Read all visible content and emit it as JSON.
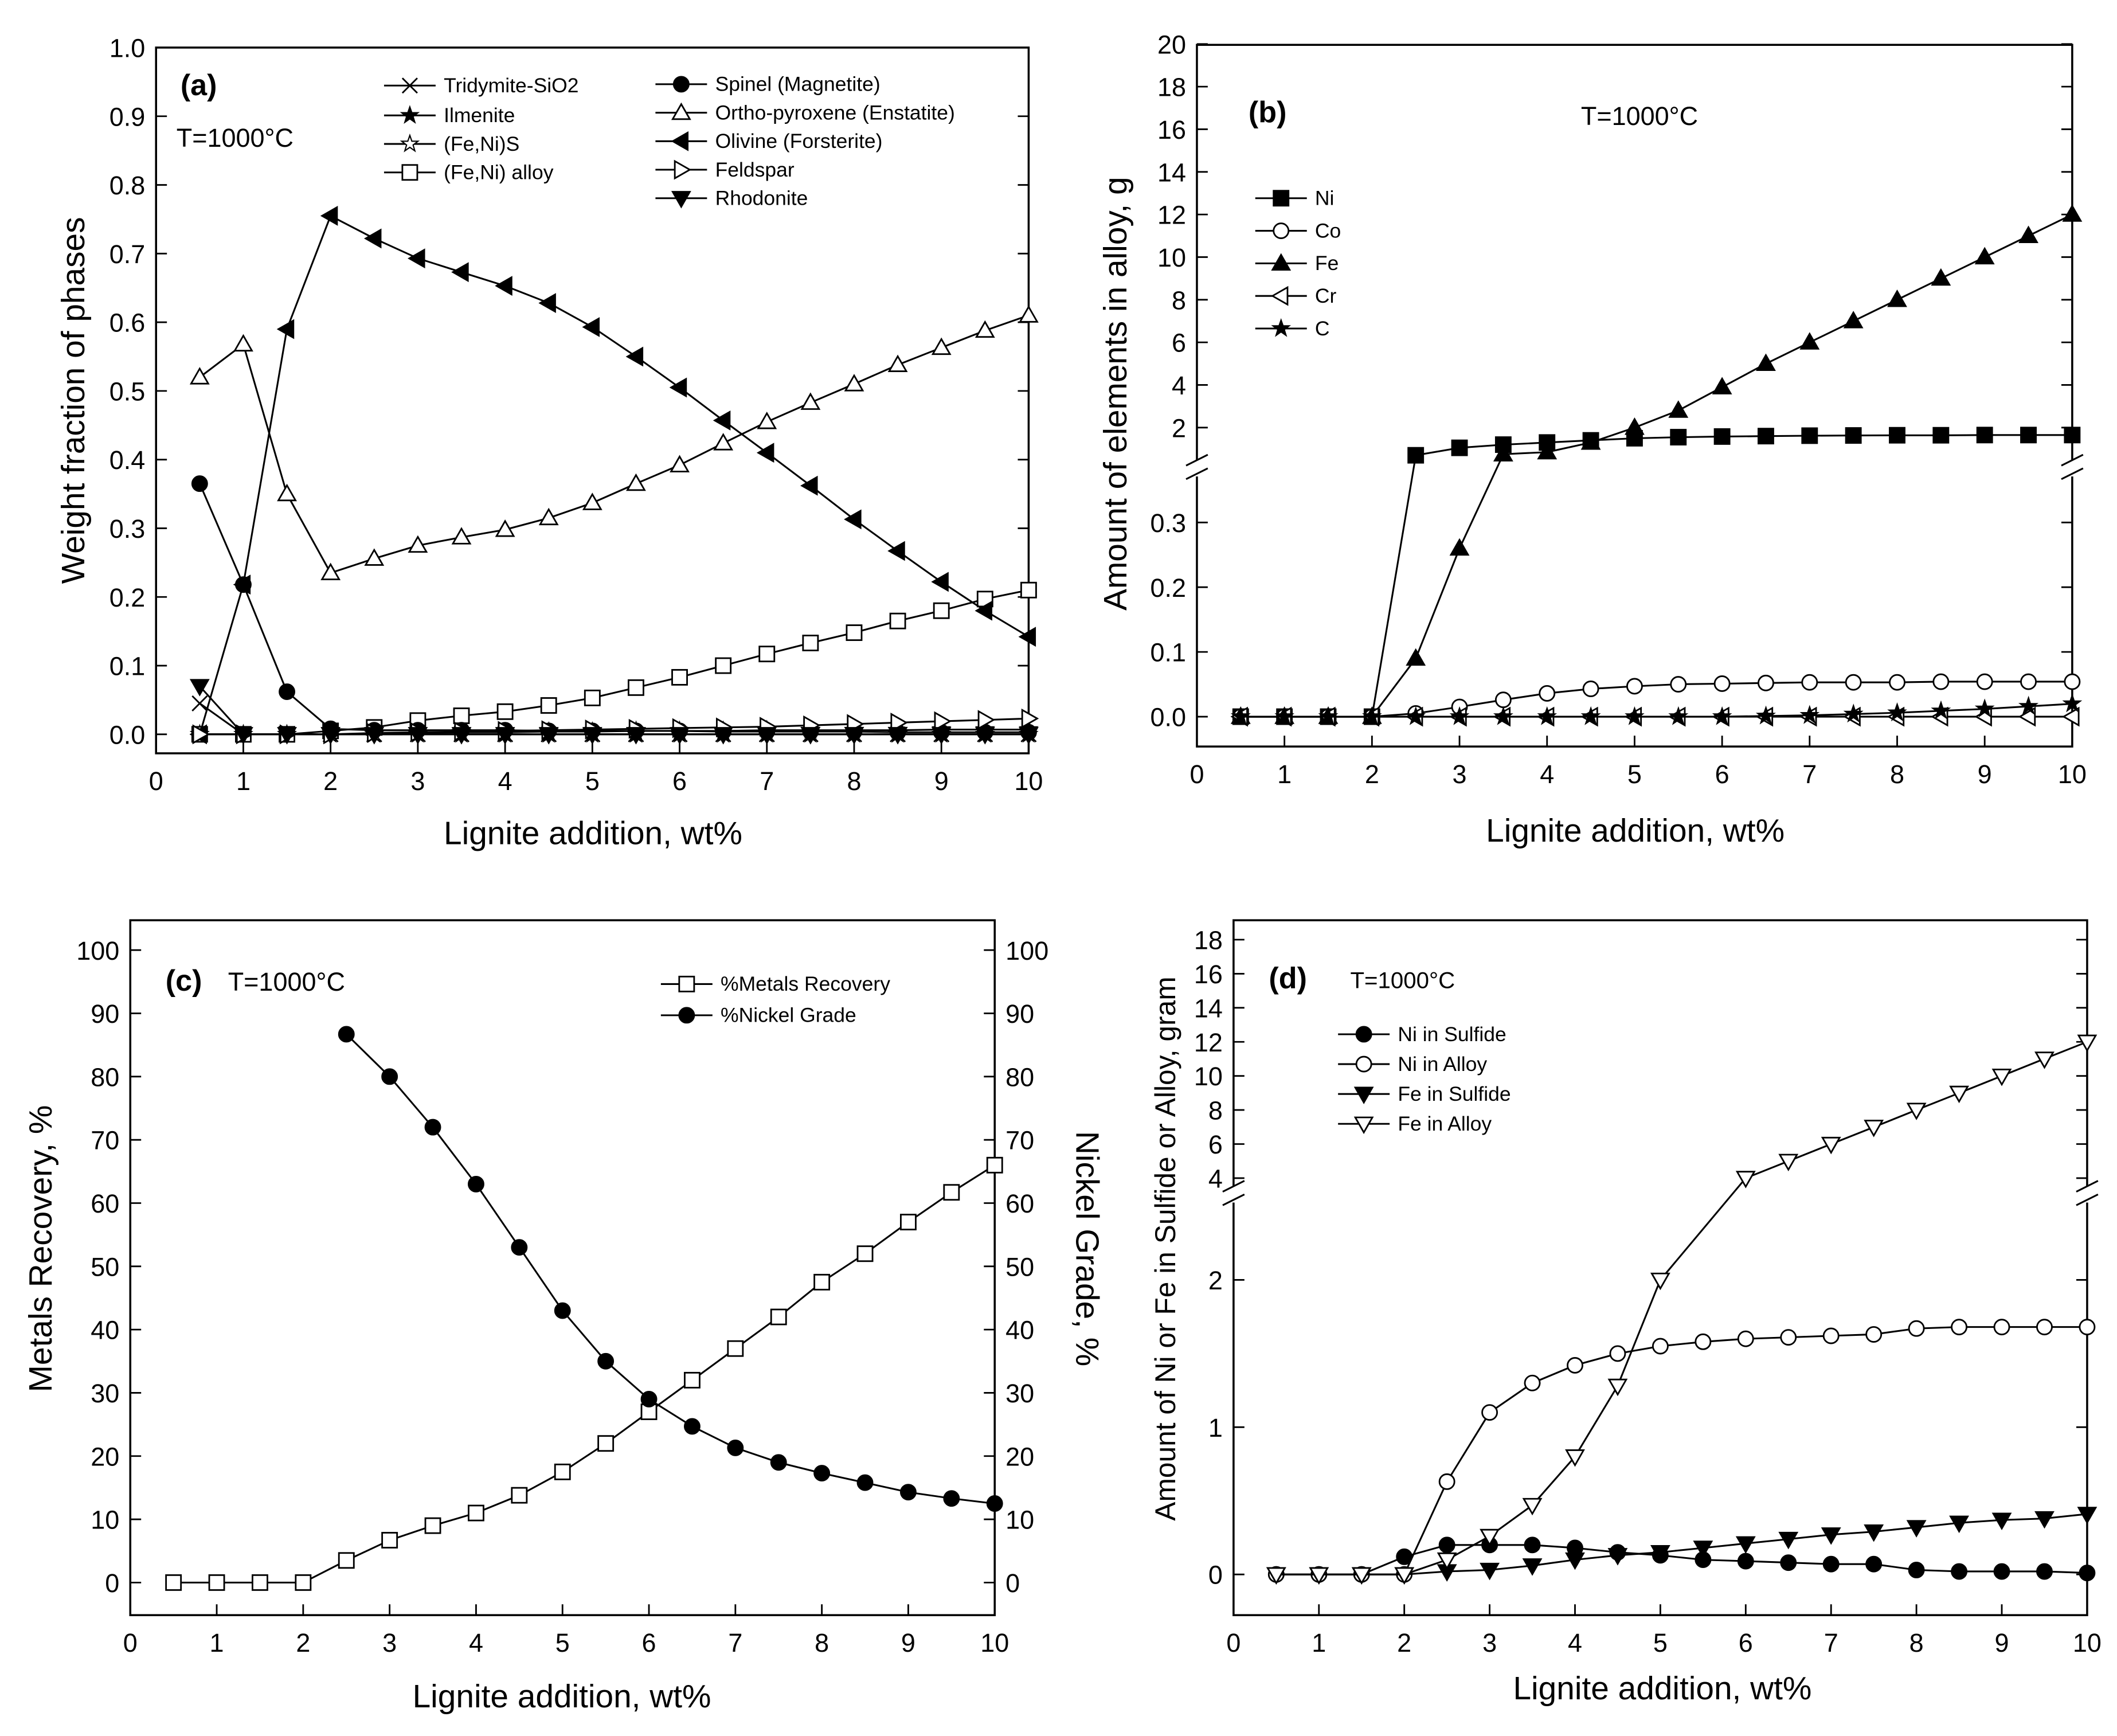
{
  "chart_data": [
    {
      "type": "line",
      "panel_label": "(a)",
      "annotation": "T=1000°C",
      "xlabel": "Lignite addition, wt%",
      "ylabel": "Weight fraction of phases",
      "xlim": [
        0,
        10
      ],
      "ylim": [
        0,
        1.0
      ],
      "xticks": [
        "0",
        "1",
        "2",
        "3",
        "4",
        "5",
        "6",
        "7",
        "8",
        "9",
        "10"
      ],
      "yticks": [
        "0.0",
        "0.1",
        "0.2",
        "0.3",
        "0.4",
        "0.5",
        "0.6",
        "0.7",
        "0.8",
        "0.9",
        "1.0"
      ],
      "x": [
        0.5,
        1,
        1.5,
        2,
        2.5,
        3,
        3.5,
        4,
        4.5,
        5,
        5.5,
        6,
        6.5,
        7,
        7.5,
        8,
        8.5,
        9,
        9.5,
        10
      ],
      "series": [
        {
          "name": "Tridymite-SiO2",
          "marker": "cross",
          "values": [
            0.045,
            0,
            0,
            0,
            0,
            0,
            0,
            0,
            0,
            0,
            0,
            0,
            0,
            0,
            0,
            0,
            0,
            0,
            0,
            0
          ]
        },
        {
          "name": "Ilmenite",
          "marker": "star-filled",
          "values": [
            0,
            0,
            0,
            0,
            0,
            0,
            0,
            0,
            0,
            0,
            0,
            0,
            0,
            0,
            0,
            0,
            0,
            0,
            0,
            0
          ]
        },
        {
          "name": "(Fe,Ni)S",
          "marker": "star-open",
          "values": [
            0,
            0,
            0,
            0,
            0.001,
            0.002,
            0.003,
            0.003,
            0.004,
            0.004,
            0.005,
            0.005,
            0.005,
            0.006,
            0.006,
            0.006,
            0.006,
            0.007,
            0.007,
            0.007
          ]
        },
        {
          "name": "(Fe,Ni) alloy",
          "marker": "square-open",
          "values": [
            0,
            0,
            0,
            0.005,
            0.01,
            0.02,
            0.027,
            0.033,
            0.042,
            0.053,
            0.068,
            0.083,
            0.1,
            0.117,
            0.133,
            0.148,
            0.165,
            0.18,
            0.197,
            0.21
          ]
        },
        {
          "name": "Spinel (Magnetite)",
          "marker": "circle-filled",
          "values": [
            0.365,
            0.218,
            0.062,
            0.008,
            0.006,
            0.006,
            0.006,
            0.006,
            0.005,
            0.005,
            0.005,
            0.005,
            0.004,
            0.004,
            0.004,
            0.004,
            0.003,
            0.003,
            0.003,
            0.003
          ]
        },
        {
          "name": "Ortho-pyroxene (Enstatite)",
          "marker": "triangle-up-open",
          "values": [
            0.52,
            0.568,
            0.35,
            0.235,
            0.256,
            0.275,
            0.287,
            0.298,
            0.315,
            0.337,
            0.365,
            0.392,
            0.424,
            0.455,
            0.483,
            0.51,
            0.538,
            0.563,
            0.588,
            0.61
          ]
        },
        {
          "name": "Olivine (Forsterite)",
          "marker": "triangle-left-filled",
          "values": [
            0.0,
            0.218,
            0.59,
            0.755,
            0.722,
            0.693,
            0.673,
            0.653,
            0.628,
            0.593,
            0.55,
            0.505,
            0.457,
            0.41,
            0.362,
            0.313,
            0.267,
            0.222,
            0.18,
            0.142
          ]
        },
        {
          "name": "Feldspar",
          "marker": "triangle-right-open",
          "values": [
            0,
            0,
            0,
            0,
            0.002,
            0.003,
            0.004,
            0.005,
            0.006,
            0.007,
            0.008,
            0.009,
            0.01,
            0.011,
            0.013,
            0.015,
            0.017,
            0.019,
            0.021,
            0.023
          ]
        },
        {
          "name": "Rhodonite",
          "marker": "triangle-down-filled",
          "values": [
            0.07,
            0,
            0,
            0,
            0,
            0,
            0,
            0,
            0,
            0,
            0,
            0,
            0,
            0,
            0,
            0,
            0,
            0,
            0,
            0
          ]
        }
      ],
      "legend": "top"
    },
    {
      "type": "line",
      "panel_label": "(b)",
      "annotation": "T=1000°C",
      "xlabel": "Lignite addition, wt%",
      "ylabel": "Amount of elements in alloy, g",
      "xlim": [
        0,
        10
      ],
      "ylim_lower": [
        0,
        0.35
      ],
      "ylim_upper": [
        2,
        20
      ],
      "broken_axis": true,
      "xticks": [
        "0",
        "1",
        "2",
        "3",
        "4",
        "5",
        "6",
        "7",
        "8",
        "9",
        "10"
      ],
      "yticks_lower": [
        "0.0",
        "0.1",
        "0.2",
        "0.3"
      ],
      "yticks_upper": [
        "2",
        "4",
        "6",
        "8",
        "10",
        "12",
        "14",
        "16",
        "18",
        "20"
      ],
      "x": [
        0.5,
        1,
        1.5,
        2,
        2.5,
        3,
        3.5,
        4,
        4.5,
        5,
        5.5,
        6,
        6.5,
        7,
        7.5,
        8,
        8.5,
        9,
        9.5,
        10
      ],
      "series": [
        {
          "name": "Ni",
          "marker": "square-filled",
          "values": [
            0,
            0,
            0,
            0,
            0.7,
            1.05,
            1.2,
            1.3,
            1.4,
            1.5,
            1.55,
            1.58,
            1.6,
            1.62,
            1.63,
            1.64,
            1.64,
            1.65,
            1.65,
            1.65
          ]
        },
        {
          "name": "Co",
          "marker": "circle-open",
          "values": [
            0,
            0,
            0,
            0,
            0.005,
            0.015,
            0.026,
            0.036,
            0.043,
            0.047,
            0.05,
            0.051,
            0.052,
            0.053,
            0.053,
            0.053,
            0.054,
            0.054,
            0.054,
            0.054
          ]
        },
        {
          "name": "Fe",
          "marker": "triangle-up-filled",
          "values": [
            0,
            0,
            0,
            0,
            0.09,
            0.26,
            0.75,
            0.85,
            1.3,
            2.0,
            2.8,
            3.9,
            5.0,
            6.0,
            7.0,
            8.0,
            9.0,
            10.0,
            11.0,
            12.0
          ]
        },
        {
          "name": "Cr",
          "marker": "triangle-left-open",
          "values": [
            0,
            0,
            0,
            0,
            0,
            0,
            0,
            0,
            0,
            0,
            0,
            0,
            0,
            0,
            0,
            0,
            0,
            0,
            0,
            0
          ]
        },
        {
          "name": "C",
          "marker": "star-filled",
          "values": [
            0,
            0,
            0,
            0,
            0,
            0,
            0,
            0,
            0,
            0,
            0,
            0,
            0.001,
            0.002,
            0.004,
            0.006,
            0.009,
            0.012,
            0.016,
            0.02
          ]
        }
      ],
      "legend": "left"
    },
    {
      "type": "line",
      "panel_label": "(c)",
      "annotation": "T=1000°C",
      "xlabel": "Lignite addition, wt%",
      "ylabel": "Metals Recovery, %",
      "ylabel_right": "Nickel Grade, %",
      "xlim": [
        0,
        10
      ],
      "ylim": [
        0,
        100
      ],
      "ylim_right": [
        0,
        100
      ],
      "xticks": [
        "0",
        "1",
        "2",
        "3",
        "4",
        "5",
        "6",
        "7",
        "8",
        "9",
        "10"
      ],
      "yticks": [
        "0",
        "10",
        "20",
        "30",
        "40",
        "50",
        "60",
        "70",
        "80",
        "90",
        "100"
      ],
      "series": [
        {
          "name": "%Metals Recovery",
          "marker": "square-open",
          "axis": "left",
          "x": [
            0.5,
            1,
            1.5,
            2,
            2.5,
            3,
            3.5,
            4,
            4.5,
            5,
            5.5,
            6,
            6.5,
            7,
            7.5,
            8,
            8.5,
            9,
            9.5,
            10
          ],
          "values": [
            0,
            0,
            0,
            0,
            3.5,
            6.7,
            9,
            11,
            13.8,
            17.5,
            22,
            27,
            32,
            37,
            42,
            47.5,
            52,
            57,
            61.7,
            66
          ]
        },
        {
          "name": "%Nickel Grade",
          "marker": "circle-filled",
          "axis": "right",
          "x": [
            2.5,
            3,
            3.5,
            4,
            4.5,
            5,
            5.5,
            6,
            6.5,
            7,
            7.5,
            8,
            8.5,
            9,
            9.5,
            10
          ],
          "values": [
            86.7,
            80,
            72,
            63,
            53,
            43,
            35,
            29,
            24.7,
            21.3,
            19,
            17.3,
            15.8,
            14.3,
            13.3,
            12.5
          ]
        }
      ],
      "legend": "top-right"
    },
    {
      "type": "line",
      "panel_label": "(d)",
      "annotation": "T=1000°C",
      "xlabel": "Lignite addition, wt%",
      "ylabel": "Amount of Ni or Fe in Sulfide or Alloy, gram",
      "xlim": [
        0,
        10
      ],
      "ylim_lower": [
        0,
        2.2
      ],
      "ylim_upper": [
        4,
        18
      ],
      "broken_axis": true,
      "xticks": [
        "0",
        "1",
        "2",
        "3",
        "4",
        "5",
        "6",
        "7",
        "8",
        "9",
        "10"
      ],
      "yticks_lower": [
        "0",
        "1",
        "2"
      ],
      "yticks_upper": [
        "4",
        "6",
        "8",
        "10",
        "12",
        "14",
        "16",
        "18"
      ],
      "x": [
        0.5,
        1,
        1.5,
        2,
        2.5,
        3,
        3.5,
        4,
        4.5,
        5,
        5.5,
        6,
        6.5,
        7,
        7.5,
        8,
        8.5,
        9,
        9.5,
        10
      ],
      "series": [
        {
          "name": "Ni in Sulfide",
          "marker": "circle-filled",
          "values": [
            0,
            0,
            0,
            0.12,
            0.2,
            0.2,
            0.2,
            0.18,
            0.15,
            0.13,
            0.1,
            0.09,
            0.08,
            0.07,
            0.07,
            0.03,
            0.02,
            0.02,
            0.02,
            0.01
          ]
        },
        {
          "name": "Ni in Alloy",
          "marker": "circle-open",
          "values": [
            0,
            0,
            0,
            0,
            0.63,
            1.1,
            1.3,
            1.42,
            1.5,
            1.55,
            1.58,
            1.6,
            1.61,
            1.62,
            1.63,
            1.67,
            1.68,
            1.68,
            1.68,
            1.68
          ]
        },
        {
          "name": "Fe in Sulfide",
          "marker": "triangle-down-filled",
          "values": [
            0,
            0,
            0,
            0,
            0.02,
            0.03,
            0.06,
            0.1,
            0.13,
            0.15,
            0.18,
            0.21,
            0.24,
            0.27,
            0.29,
            0.32,
            0.35,
            0.37,
            0.38,
            0.41
          ]
        },
        {
          "name": "Fe in Alloy",
          "marker": "triangle-down-open",
          "values": [
            0,
            0,
            0,
            0,
            0.1,
            0.26,
            0.47,
            0.8,
            1.28,
            2.0,
            null,
            4.0,
            5.0,
            6.0,
            7.0,
            8.0,
            9.0,
            10.0,
            11.0,
            12.0
          ]
        }
      ],
      "legend": "top-left"
    }
  ]
}
